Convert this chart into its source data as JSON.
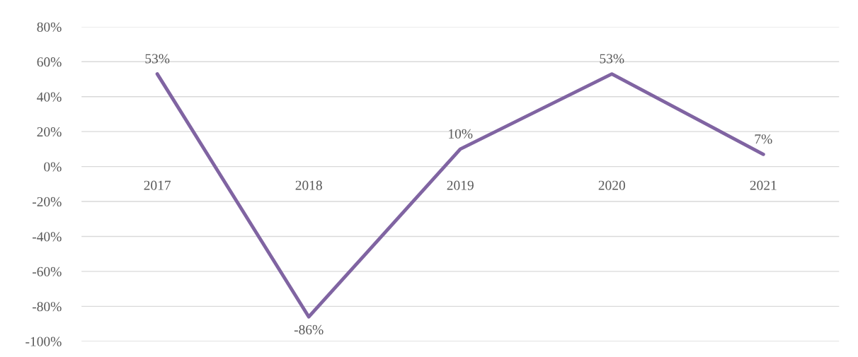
{
  "chart_data": {
    "type": "line",
    "categories": [
      "2017",
      "2018",
      "2019",
      "2020",
      "2021"
    ],
    "series": [
      {
        "color": "#8064a2",
        "values": [
          53,
          -86,
          10,
          53,
          7
        ],
        "value_labels": [
          "53%",
          "-86%",
          "10%",
          "53%",
          "7%"
        ]
      }
    ],
    "ylim": [
      -100,
      80
    ],
    "yticks": [
      {
        "value": -100,
        "label": "-100%"
      },
      {
        "value": -80,
        "label": "-80%"
      },
      {
        "value": -60,
        "label": "-60%"
      },
      {
        "value": -40,
        "label": "-40%"
      },
      {
        "value": -20,
        "label": "-20%"
      },
      {
        "value": 0,
        "label": "0%"
      },
      {
        "value": 20,
        "label": "20%"
      },
      {
        "value": 40,
        "label": "40%"
      },
      {
        "value": 60,
        "label": "60%"
      },
      {
        "value": 80,
        "label": "80%"
      }
    ],
    "grid": "y",
    "legend": false,
    "marker": "none",
    "line_style": "solid"
  }
}
